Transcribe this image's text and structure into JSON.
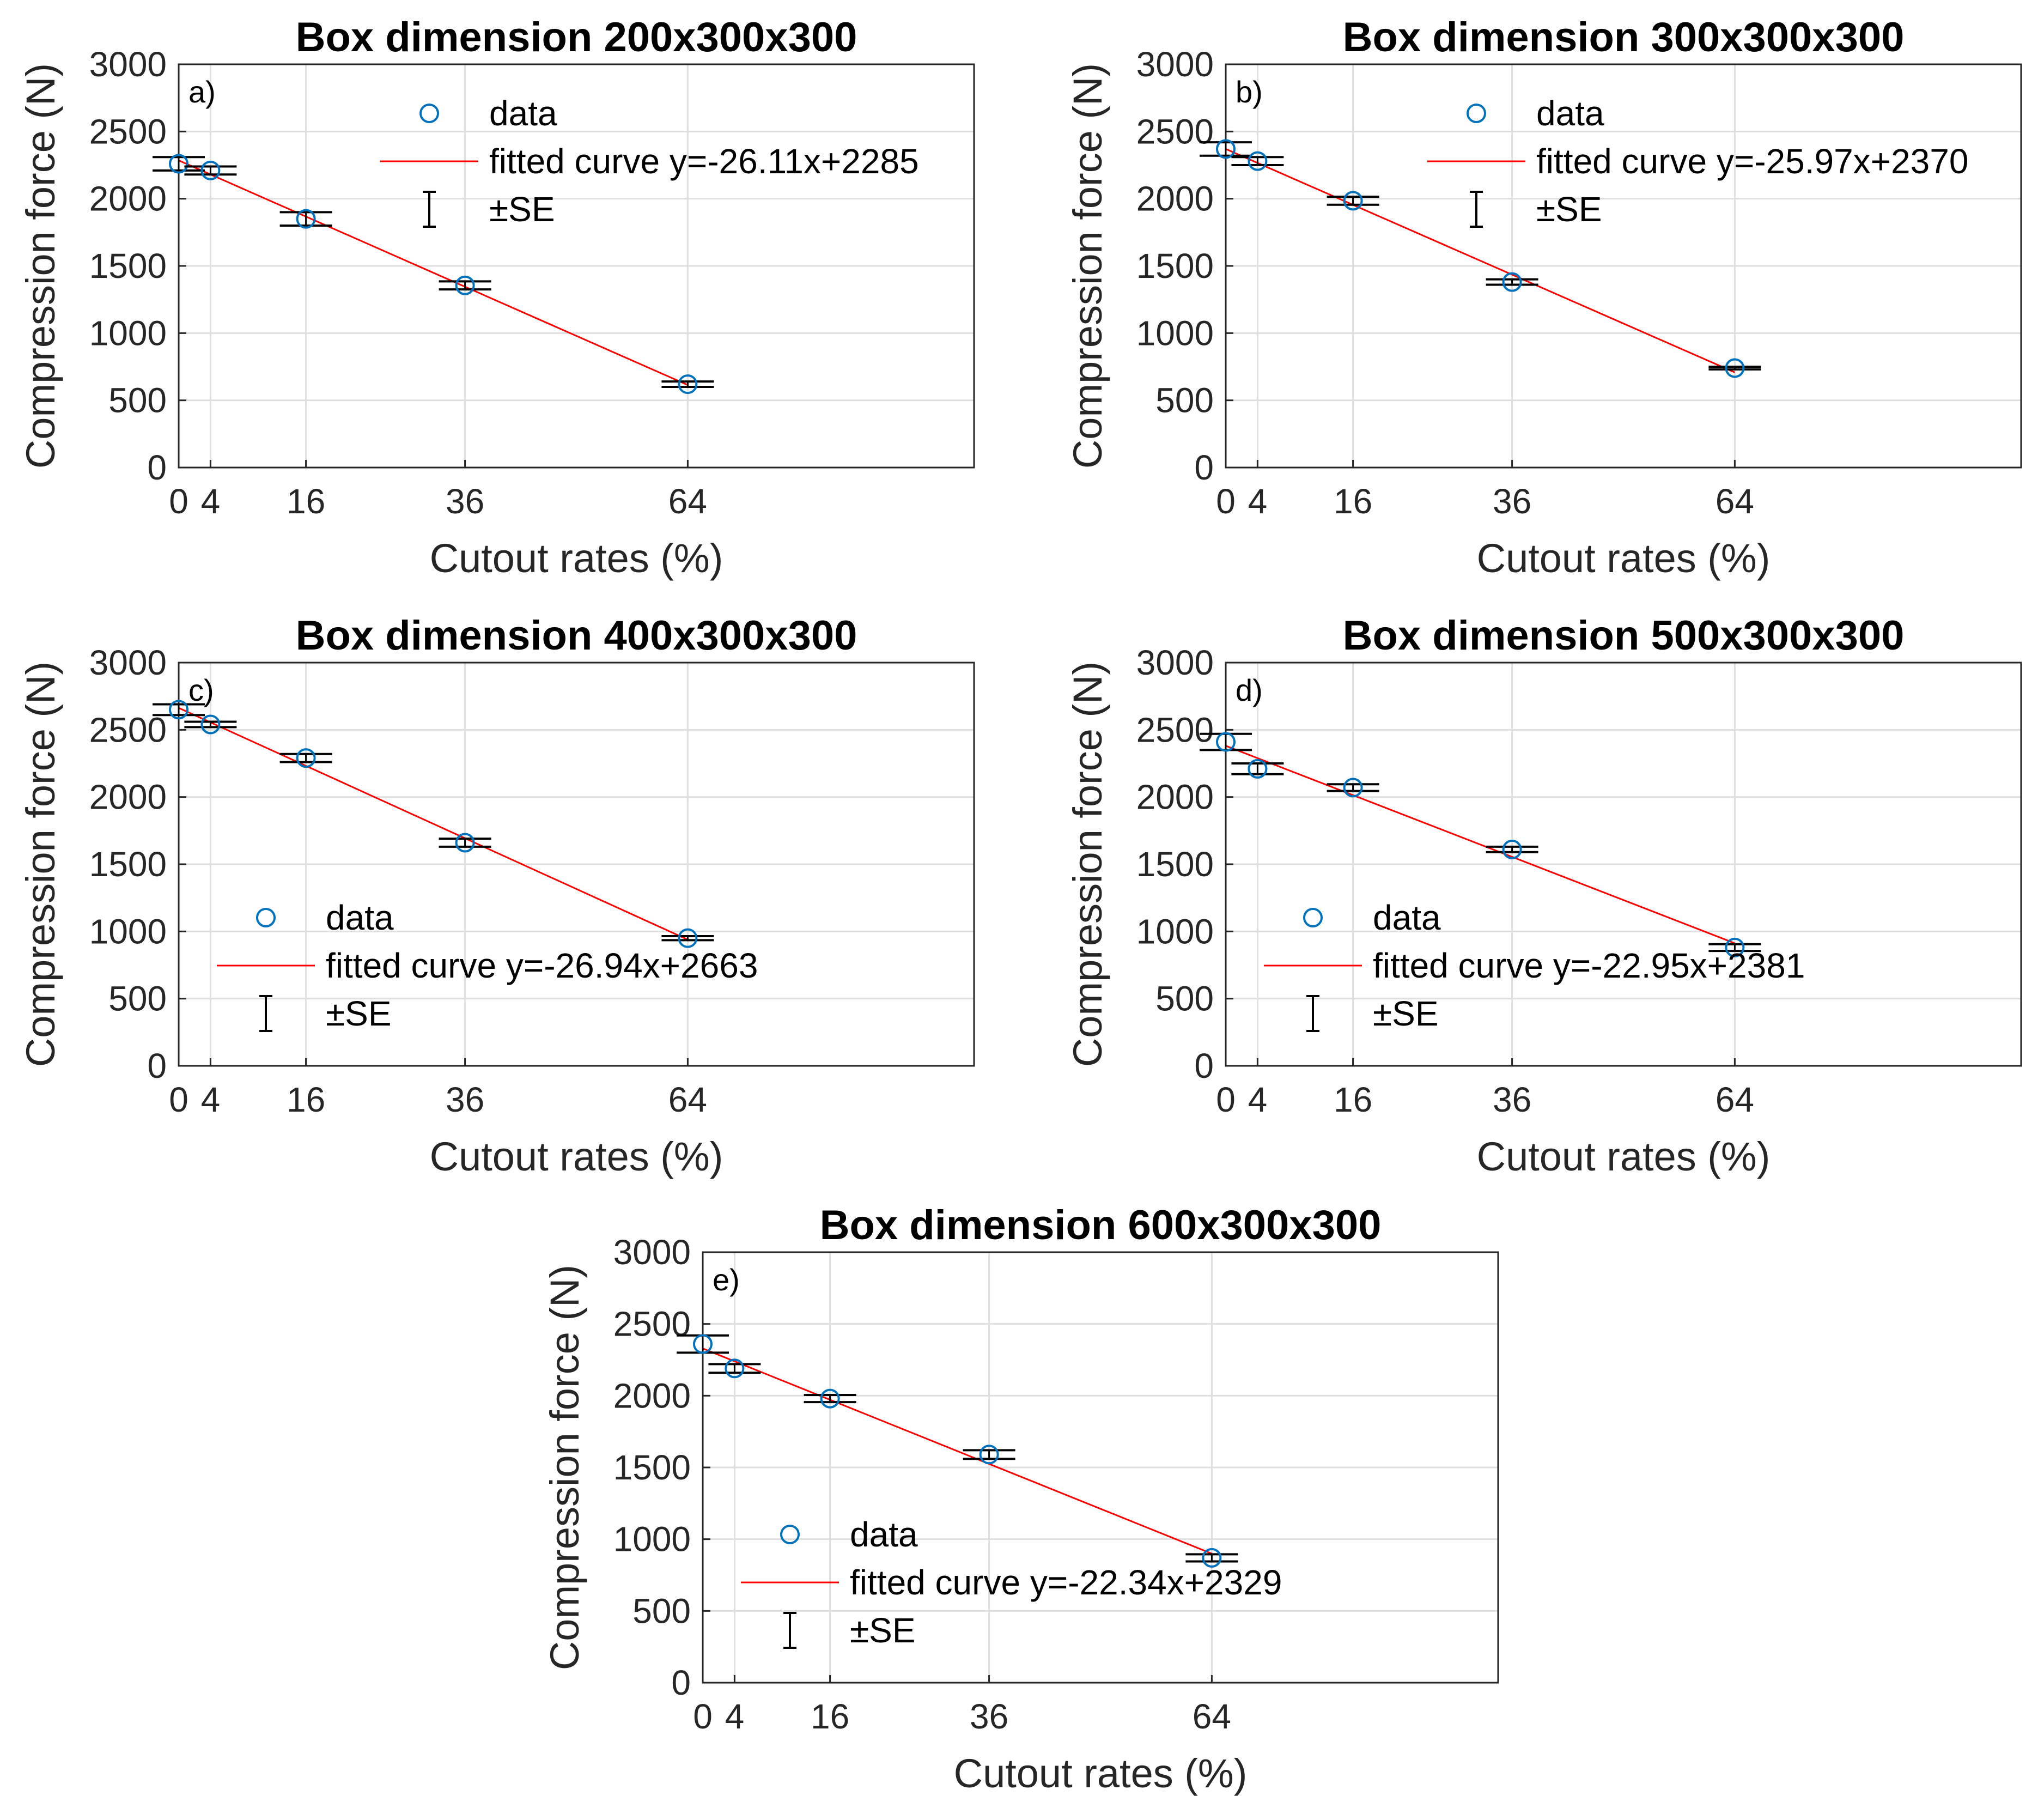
{
  "figure": {
    "colors": {
      "data": "#0072BD",
      "fit": "#FF0000",
      "error": "#000000",
      "grid": "#DFDFDF",
      "axis": "#262626"
    },
    "legend_labels": {
      "data": "data",
      "se": "±SE"
    }
  },
  "chart_data": [
    {
      "type": "scatter",
      "panel": "a)",
      "title": "Box dimension 200x300x300",
      "xlabel": "Cutout rates (%)",
      "ylabel": "Compression force (N)",
      "xlim": [
        0,
        100
      ],
      "ylim": [
        0,
        3000
      ],
      "xticks": [
        0,
        4,
        16,
        36,
        64
      ],
      "yticks": [
        0,
        500,
        1000,
        1500,
        2000,
        2500,
        3000
      ],
      "grid": true,
      "legend_position": "top-center",
      "series": [
        {
          "name": "data",
          "x": [
            0,
            4,
            16,
            36,
            64
          ],
          "y": [
            2260,
            2210,
            1850,
            1355,
            620
          ],
          "se": [
            50,
            30,
            50,
            30,
            20
          ]
        },
        {
          "name": "fitted curve y=-26.11x+2285",
          "slope": -26.11,
          "intercept": 2285,
          "x_range": [
            0,
            64
          ]
        }
      ]
    },
    {
      "type": "scatter",
      "panel": "b)",
      "title": "Box dimension 300x300x300",
      "xlabel": "Cutout rates (%)",
      "ylabel": "Compression force (N)",
      "xlim": [
        0,
        100
      ],
      "ylim": [
        0,
        3000
      ],
      "xticks": [
        0,
        4,
        16,
        36,
        64
      ],
      "yticks": [
        0,
        500,
        1000,
        1500,
        2000,
        2500,
        3000
      ],
      "grid": true,
      "legend_position": "top-center",
      "series": [
        {
          "name": "data",
          "x": [
            0,
            4,
            16,
            36,
            64
          ],
          "y": [
            2370,
            2280,
            1985,
            1380,
            740
          ],
          "se": [
            50,
            30,
            30,
            20,
            10
          ]
        },
        {
          "name": "fitted curve y=-25.97x+2370",
          "slope": -25.97,
          "intercept": 2370,
          "x_range": [
            0,
            64
          ]
        }
      ]
    },
    {
      "type": "scatter",
      "panel": "c)",
      "title": "Box dimension 400x300x300",
      "xlabel": "Cutout rates (%)",
      "ylabel": "Compression force (N)",
      "xlim": [
        0,
        100
      ],
      "ylim": [
        0,
        3000
      ],
      "xticks": [
        0,
        4,
        16,
        36,
        64
      ],
      "yticks": [
        0,
        500,
        1000,
        1500,
        2000,
        2500,
        3000
      ],
      "grid": true,
      "legend_position": "bottom-left",
      "series": [
        {
          "name": "data",
          "x": [
            0,
            4,
            16,
            36,
            64
          ],
          "y": [
            2650,
            2540,
            2290,
            1660,
            950
          ],
          "se": [
            40,
            20,
            30,
            30,
            15
          ]
        },
        {
          "name": "fitted curve y=-26.94x+2663",
          "slope": -26.94,
          "intercept": 2663,
          "x_range": [
            0,
            64
          ]
        }
      ]
    },
    {
      "type": "scatter",
      "panel": "d)",
      "title": "Box dimension 500x300x300",
      "xlabel": "Cutout rates (%)",
      "ylabel": "Compression force (N)",
      "xlim": [
        0,
        100
      ],
      "ylim": [
        0,
        3000
      ],
      "xticks": [
        0,
        4,
        16,
        36,
        64
      ],
      "yticks": [
        0,
        500,
        1000,
        1500,
        2000,
        2500,
        3000
      ],
      "grid": true,
      "legend_position": "bottom-left",
      "series": [
        {
          "name": "data",
          "x": [
            0,
            4,
            16,
            36,
            64
          ],
          "y": [
            2410,
            2210,
            2070,
            1610,
            880
          ],
          "se": [
            60,
            40,
            25,
            20,
            25
          ]
        },
        {
          "name": "fitted curve y=-22.95x+2381",
          "slope": -22.95,
          "intercept": 2381,
          "x_range": [
            0,
            64
          ]
        }
      ]
    },
    {
      "type": "scatter",
      "panel": "e)",
      "title": "Box dimension 600x300x300",
      "xlabel": "Cutout rates (%)",
      "ylabel": "Compression force (N)",
      "xlim": [
        0,
        100
      ],
      "ylim": [
        0,
        3000
      ],
      "xticks": [
        0,
        4,
        16,
        36,
        64
      ],
      "yticks": [
        0,
        500,
        1000,
        1500,
        2000,
        2500,
        3000
      ],
      "grid": true,
      "legend_position": "bottom-left",
      "series": [
        {
          "name": "data",
          "x": [
            0,
            4,
            16,
            36,
            64
          ],
          "y": [
            2360,
            2190,
            1980,
            1590,
            870
          ],
          "se": [
            60,
            30,
            25,
            30,
            25
          ]
        },
        {
          "name": "fitted curve y=-22.34x+2329",
          "slope": -22.34,
          "intercept": 2329,
          "x_range": [
            0,
            64
          ]
        }
      ]
    }
  ]
}
